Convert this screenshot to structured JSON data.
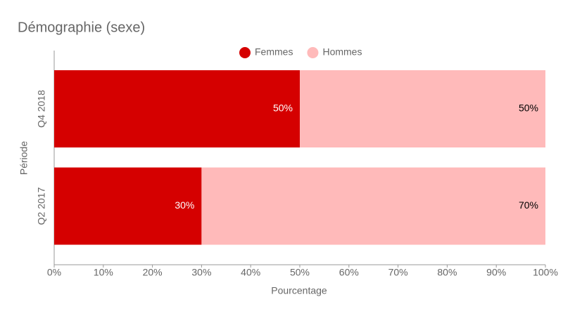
{
  "chart_data": {
    "type": "stacked-barh",
    "title": "Démographie (sexe)",
    "x_label": "Pourcentage",
    "y_label": "Période",
    "categories": [
      "Q4 2018",
      "Q2 2017"
    ],
    "series": [
      {
        "name": "Femmes",
        "color": "#d50000",
        "label_color": "#ffffff",
        "values": [
          50,
          30
        ],
        "value_labels": [
          "50%",
          "30%"
        ]
      },
      {
        "name": "Hommes",
        "color": "#ffbaba",
        "label_color": "#000000",
        "values": [
          50,
          70
        ],
        "value_labels": [
          "50%",
          "70%"
        ]
      }
    ],
    "xlim": [
      0,
      100
    ],
    "xticks": [
      {
        "value": 0,
        "label": "0%"
      },
      {
        "value": 10,
        "label": "10%"
      },
      {
        "value": 20,
        "label": "20%"
      },
      {
        "value": 30,
        "label": "30%"
      },
      {
        "value": 40,
        "label": "40%"
      },
      {
        "value": 50,
        "label": "50%"
      },
      {
        "value": 60,
        "label": "60%"
      },
      {
        "value": 70,
        "label": "70%"
      },
      {
        "value": 80,
        "label": "80%"
      },
      {
        "value": 90,
        "label": "90%"
      },
      {
        "value": 100,
        "label": "100%"
      }
    ],
    "legend": "top"
  }
}
